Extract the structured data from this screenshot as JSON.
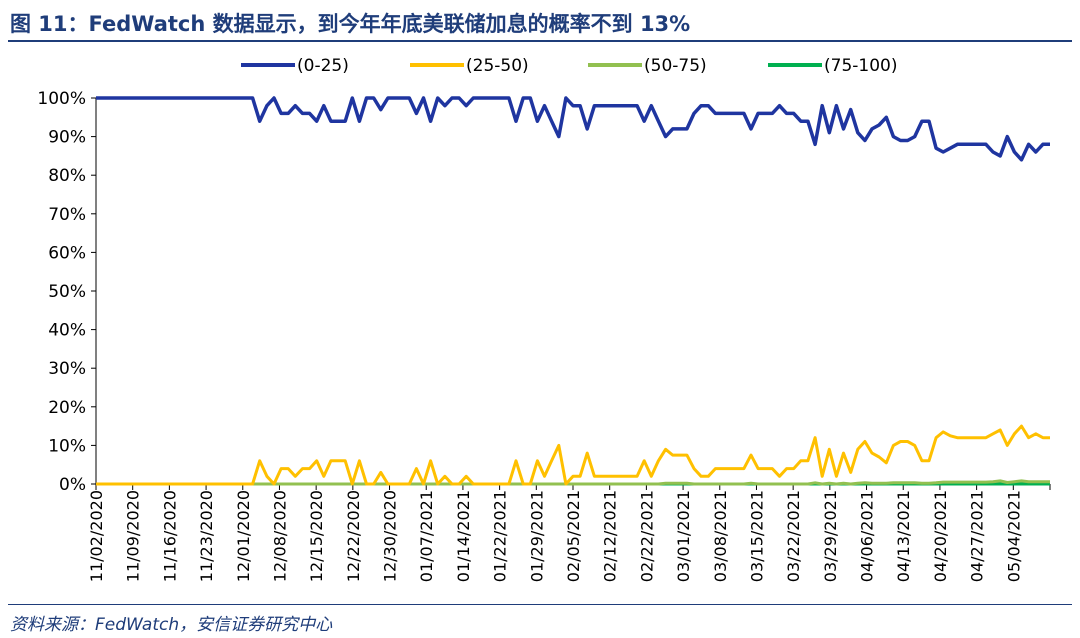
{
  "header": {
    "title": "图 11：FedWatch 数据显示，到今年年底美联储加息的概率不到 13%"
  },
  "footer": {
    "source": "资料来源：FedWatch，安信证券研究中心"
  },
  "chart_data": {
    "type": "line",
    "title": "",
    "xlabel": "",
    "ylabel": "",
    "ylim": [
      0,
      100
    ],
    "y_ticks": [
      "0%",
      "10%",
      "20%",
      "30%",
      "40%",
      "50%",
      "60%",
      "70%",
      "80%",
      "90%",
      "100%"
    ],
    "x_tick_labels": [
      "11/02/2020",
      "11/09/2020",
      "11/16/2020",
      "11/23/2020",
      "12/01/2020",
      "12/08/2020",
      "12/15/2020",
      "12/22/2020",
      "12/30/2020",
      "01/07/2021",
      "01/14/2021",
      "01/22/2021",
      "01/29/2021",
      "02/05/2021",
      "02/12/2021",
      "02/22/2021",
      "03/01/2021",
      "03/08/2021",
      "03/15/2021",
      "03/22/2021",
      "03/29/2021",
      "04/06/2021",
      "04/13/2021",
      "04/20/2021",
      "04/27/2021",
      "05/04/2021"
    ],
    "legend_position": "top",
    "grid": false,
    "colors": {
      "(0-25)": "#1f35a0",
      "(25-50)": "#ffc000",
      "(50-75)": "#92c050",
      "(75-100)": "#00b050"
    },
    "series": [
      {
        "name": "(0-25)",
        "values": [
          100,
          100,
          100,
          100,
          100,
          100,
          100,
          100,
          100,
          100,
          100,
          100,
          100,
          100,
          100,
          100,
          100,
          100,
          100,
          100,
          100,
          100,
          100,
          94,
          98,
          100,
          96,
          96,
          98,
          96,
          96,
          94,
          98,
          94,
          94,
          94,
          100,
          94,
          100,
          100,
          97,
          100,
          100,
          100,
          100,
          96,
          100,
          94,
          100,
          98,
          100,
          100,
          98,
          100,
          100,
          100,
          100,
          100,
          100,
          94,
          100,
          100,
          94,
          98,
          94,
          90,
          100,
          98,
          98,
          92,
          98,
          98,
          98,
          98,
          98,
          98,
          98,
          94,
          98,
          94,
          90,
          92,
          92,
          92,
          96,
          98,
          98,
          96,
          96,
          96,
          96,
          96,
          92,
          96,
          96,
          96,
          98,
          96,
          96,
          94,
          94,
          88,
          98,
          91,
          98,
          92,
          97,
          91,
          89,
          92,
          93,
          95,
          90,
          89,
          89,
          90,
          94,
          94,
          87,
          86,
          87,
          88,
          88,
          88,
          88,
          88,
          86,
          85,
          90,
          86,
          84,
          88,
          86,
          88,
          88
        ]
      },
      {
        "name": "(25-50)",
        "values": [
          0,
          0,
          0,
          0,
          0,
          0,
          0,
          0,
          0,
          0,
          0,
          0,
          0,
          0,
          0,
          0,
          0,
          0,
          0,
          0,
          0,
          0,
          0,
          6,
          2,
          0,
          4,
          4,
          2,
          4,
          4,
          6,
          2,
          6,
          6,
          6,
          0,
          6,
          0,
          0,
          3,
          0,
          0,
          0,
          0,
          4,
          0,
          6,
          0,
          2,
          0,
          0,
          2,
          0,
          0,
          0,
          0,
          0,
          0,
          6,
          0,
          0,
          6,
          2,
          6,
          10,
          0,
          2,
          2,
          8,
          2,
          2,
          2,
          2,
          2,
          2,
          2,
          6,
          2,
          6,
          9,
          7.5,
          7.5,
          7.5,
          4,
          2,
          2,
          4,
          4,
          4,
          4,
          4,
          7.5,
          4,
          4,
          4,
          2,
          4,
          4,
          6,
          6,
          12,
          2,
          9,
          2,
          8,
          3,
          9,
          11,
          8,
          7,
          5.5,
          10,
          11,
          11,
          10,
          6,
          6,
          12,
          13.5,
          12.5,
          12,
          12,
          12,
          12,
          12,
          13,
          14,
          10,
          13,
          15,
          12,
          13,
          12,
          12
        ]
      },
      {
        "name": "(50-75)",
        "values": [
          0,
          0,
          0,
          0,
          0,
          0,
          0,
          0,
          0,
          0,
          0,
          0,
          0,
          0,
          0,
          0,
          0,
          0,
          0,
          0,
          0,
          0,
          0,
          0,
          0,
          0,
          0,
          0,
          0,
          0,
          0,
          0,
          0,
          0,
          0,
          0,
          0,
          0,
          0,
          0,
          0,
          0,
          0,
          0,
          0,
          0,
          0,
          0,
          0,
          0,
          0,
          0,
          0,
          0,
          0,
          0,
          0,
          0,
          0,
          0,
          0,
          0,
          0,
          0,
          0,
          0,
          0,
          0,
          0,
          0,
          0,
          0,
          0,
          0,
          0,
          0,
          0,
          0,
          0,
          0,
          0.2,
          0.2,
          0.2,
          0.2,
          0,
          0,
          0,
          0,
          0,
          0,
          0,
          0,
          0.2,
          0,
          0,
          0,
          0,
          0,
          0,
          0,
          0,
          0.3,
          0,
          0.2,
          0,
          0.2,
          0,
          0.2,
          0.3,
          0.2,
          0.2,
          0.2,
          0.3,
          0.3,
          0.3,
          0.3,
          0.2,
          0.2,
          0.3,
          0.5,
          0.5,
          0.5,
          0.5,
          0.5,
          0.5,
          0.5,
          0.6,
          0.8,
          0.4,
          0.6,
          0.8,
          0.6,
          0.6,
          0.6,
          0.6
        ]
      },
      {
        "name": "(75-100)",
        "values": [
          0,
          0,
          0,
          0,
          0,
          0,
          0,
          0,
          0,
          0,
          0,
          0,
          0,
          0,
          0,
          0,
          0,
          0,
          0,
          0,
          0,
          0,
          0,
          0,
          0,
          0,
          0,
          0,
          0,
          0,
          0,
          0,
          0,
          0,
          0,
          0,
          0,
          0,
          0,
          0,
          0,
          0,
          0,
          0,
          0,
          0,
          0,
          0,
          0,
          0,
          0,
          0,
          0,
          0,
          0,
          0,
          0,
          0,
          0,
          0,
          0,
          0,
          0,
          0,
          0,
          0,
          0,
          0,
          0,
          0,
          0,
          0,
          0,
          0,
          0,
          0,
          0,
          0,
          0,
          0,
          0,
          0,
          0,
          0,
          0,
          0,
          0,
          0,
          0,
          0,
          0,
          0,
          0,
          0,
          0,
          0,
          0,
          0,
          0,
          0,
          0,
          0,
          0,
          0,
          0,
          0,
          0,
          0,
          0,
          0,
          0,
          0,
          0,
          0,
          0,
          0,
          0,
          0,
          0,
          0,
          0,
          0,
          0,
          0,
          0,
          0,
          0,
          0,
          0,
          0,
          0,
          0,
          0,
          0,
          0
        ]
      }
    ]
  }
}
